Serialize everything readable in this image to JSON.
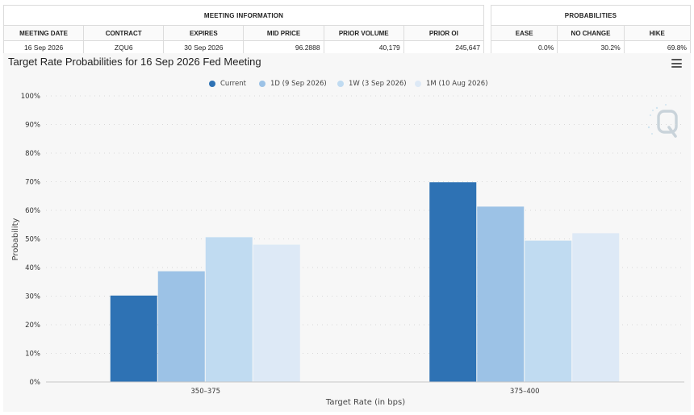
{
  "meeting_info": {
    "caption": "MEETING INFORMATION",
    "headers": [
      "MEETING DATE",
      "CONTRACT",
      "EXPIRES",
      "MID PRICE",
      "PRIOR VOLUME",
      "PRIOR OI"
    ],
    "values": [
      "16 Sep 2026",
      "ZQU6",
      "30 Sep 2026",
      "96.2888",
      "40,179",
      "245,647"
    ]
  },
  "probabilities": {
    "caption": "PROBABILITIES",
    "headers": [
      "EASE",
      "NO CHANGE",
      "HIKE"
    ],
    "values": [
      "0.0%",
      "30.2%",
      "69.8%"
    ]
  },
  "chart": {
    "title": "Target Rate Probabilities for 16 Sep 2026 Fed Meeting",
    "menu_icon": "hamburger-menu-icon",
    "watermark_icon": "q-logo-icon"
  },
  "chart_data": {
    "type": "bar",
    "categories": [
      "350–375",
      "375–400"
    ],
    "series": [
      {
        "name": "Current",
        "values": [
          30.2,
          69.8
        ],
        "color": "#2e72b4"
      },
      {
        "name": "1D (9 Sep 2026)",
        "values": [
          38.7,
          61.3
        ],
        "color": "#9cc2e6"
      },
      {
        "name": "1W (3 Sep 2026)",
        "values": [
          50.6,
          49.4
        ],
        "color": "#c0dbf1"
      },
      {
        "name": "1M (10 Aug 2026)",
        "values": [
          48.0,
          52.0
        ],
        "color": "#dde9f6"
      }
    ],
    "yticks": [
      "0%",
      "10%",
      "20%",
      "30%",
      "40%",
      "50%",
      "60%",
      "70%",
      "80%",
      "90%",
      "100%"
    ],
    "ylim": [
      0,
      100
    ],
    "xlabel": "Target Rate (in bps)",
    "ylabel": "Probability",
    "grid": true,
    "legend": "top-center"
  }
}
